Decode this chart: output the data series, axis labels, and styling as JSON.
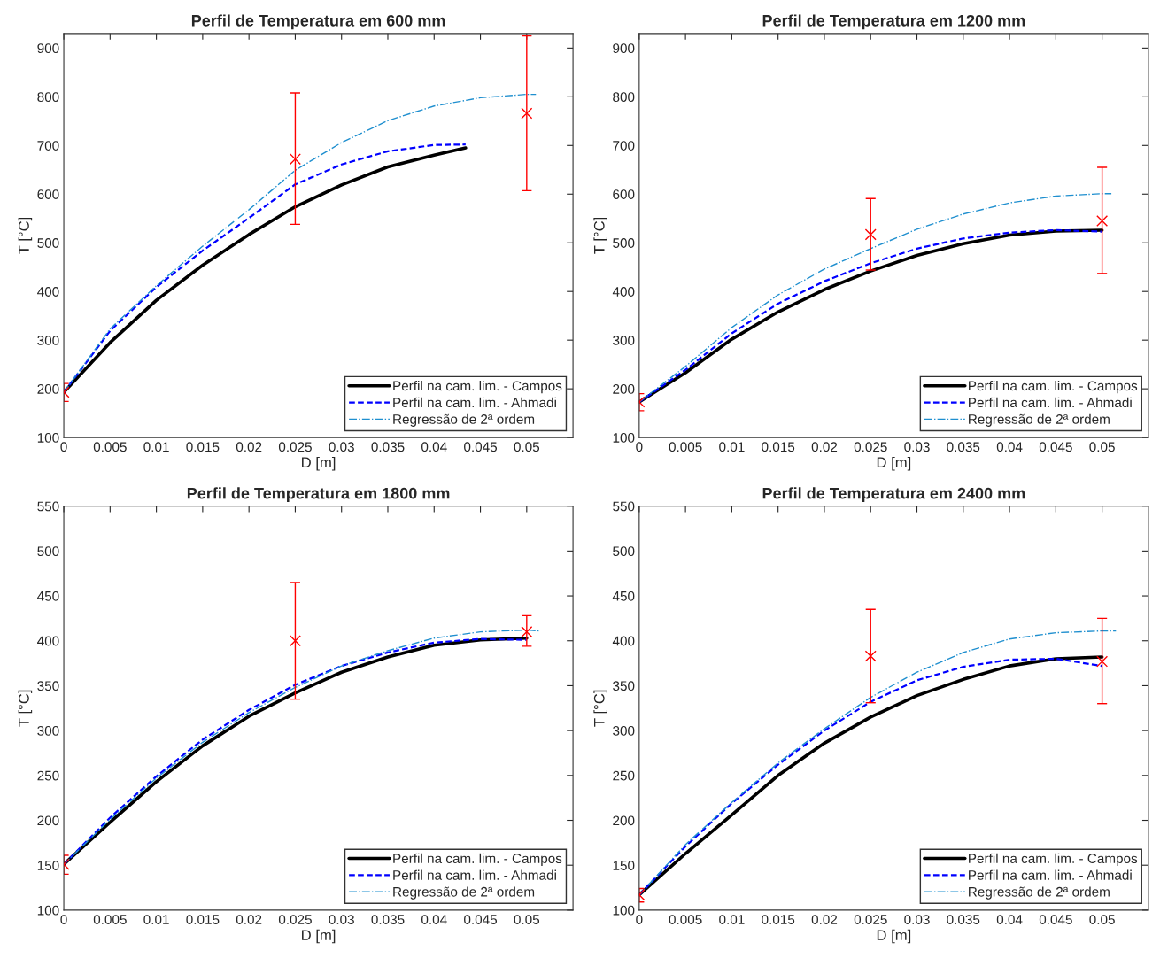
{
  "chart_data": [
    {
      "type": "line",
      "title": "Perfil de Temperatura em 600 mm",
      "xlabel": "D [m]",
      "ylabel": "T [°C]",
      "xlim": [
        0,
        0.055
      ],
      "ylim": [
        100,
        930
      ],
      "xticks": [
        0,
        0.005,
        0.01,
        0.015,
        0.02,
        0.025,
        0.03,
        0.035,
        0.04,
        0.045,
        0.05
      ],
      "yticks": [
        100,
        200,
        300,
        400,
        500,
        600,
        700,
        800,
        900
      ],
      "grid": false,
      "legend": "bottom right",
      "series": [
        {
          "name": "Perfil na cam. lim. - Campos",
          "color": "#000000",
          "line_style": "solid",
          "x": [
            0,
            0.005,
            0.01,
            0.015,
            0.02,
            0.025,
            0.03,
            0.035,
            0.04,
            0.0434
          ],
          "values": [
            193,
            295,
            382,
            454,
            517,
            574,
            619,
            656,
            680,
            695
          ]
        },
        {
          "name": "Perfil na cam. lim. - Ahmadi",
          "color": "#0000ff",
          "line_style": "dashed",
          "x": [
            0,
            0.005,
            0.01,
            0.015,
            0.02,
            0.025,
            0.03,
            0.035,
            0.04,
            0.0434
          ],
          "values": [
            193,
            319,
            409,
            484,
            551,
            620,
            661,
            688,
            701,
            702
          ]
        },
        {
          "name": "Regressão de 2ª ordem",
          "color": "#1f8fcf",
          "line_style": "dashdot",
          "x": [
            0,
            0.005,
            0.01,
            0.015,
            0.02,
            0.025,
            0.03,
            0.035,
            0.04,
            0.045,
            0.05,
            0.051
          ],
          "values": [
            193,
            323,
            412,
            493,
            568,
            649,
            706,
            751,
            781,
            798,
            805,
            805
          ]
        },
        {
          "type": "scatter",
          "marker": "cross",
          "color": "#ff0000",
          "x": [
            0,
            0.025,
            0.05
          ],
          "values": [
            193,
            672,
            766
          ],
          "errors": [
            [
              174,
              211
            ],
            [
              538,
              808
            ],
            [
              607,
              925
            ]
          ]
        }
      ]
    },
    {
      "type": "line",
      "title": "Perfil de Temperatura em 1200 mm",
      "xlabel": "D [m]",
      "ylabel": "T [°C]",
      "xlim": [
        0,
        0.055
      ],
      "ylim": [
        100,
        930
      ],
      "xticks": [
        0,
        0.005,
        0.01,
        0.015,
        0.02,
        0.025,
        0.03,
        0.035,
        0.04,
        0.045,
        0.05
      ],
      "yticks": [
        100,
        200,
        300,
        400,
        500,
        600,
        700,
        800,
        900
      ],
      "grid": false,
      "legend": "bottom right",
      "series": [
        {
          "name": "Perfil na cam. lim. - Campos",
          "color": "#000000",
          "line_style": "solid",
          "x": [
            0,
            0.005,
            0.01,
            0.015,
            0.02,
            0.025,
            0.03,
            0.035,
            0.04,
            0.045,
            0.05
          ],
          "values": [
            173,
            233,
            302,
            358,
            404,
            442,
            474,
            498,
            516,
            524,
            526
          ]
        },
        {
          "name": "Perfil na cam. lim. - Ahmadi",
          "color": "#0000ff",
          "line_style": "dashed",
          "x": [
            0,
            0.005,
            0.01,
            0.015,
            0.02,
            0.025,
            0.03,
            0.035,
            0.04,
            0.045,
            0.05
          ],
          "values": [
            173,
            239,
            314,
            375,
            421,
            458,
            488,
            509,
            521,
            526,
            523
          ]
        },
        {
          "name": "Regressão de 2ª ordem",
          "color": "#1f8fcf",
          "line_style": "dashdot",
          "x": [
            0,
            0.005,
            0.01,
            0.015,
            0.02,
            0.025,
            0.03,
            0.035,
            0.04,
            0.045,
            0.05,
            0.051
          ],
          "values": [
            173,
            246,
            326,
            393,
            446,
            488,
            528,
            559,
            582,
            596,
            601,
            601
          ]
        },
        {
          "type": "scatter",
          "marker": "cross",
          "color": "#ff0000",
          "x": [
            0,
            0.025,
            0.05
          ],
          "values": [
            173,
            517,
            545
          ],
          "errors": [
            [
              155,
              190
            ],
            [
              444,
              591
            ],
            [
              437,
              655
            ]
          ]
        }
      ]
    },
    {
      "type": "line",
      "title": "Perfil de Temperatura em 1800 mm",
      "xlabel": "D [m]",
      "ylabel": "T [°C]",
      "xlim": [
        0,
        0.055
      ],
      "ylim": [
        100,
        550
      ],
      "xticks": [
        0,
        0.005,
        0.01,
        0.015,
        0.02,
        0.025,
        0.03,
        0.035,
        0.04,
        0.045,
        0.05
      ],
      "yticks": [
        100,
        150,
        200,
        250,
        300,
        350,
        400,
        450,
        500,
        550
      ],
      "grid": false,
      "legend": "bottom right",
      "series": [
        {
          "name": "Perfil na cam. lim. - Campos",
          "color": "#000000",
          "line_style": "solid",
          "x": [
            0,
            0.005,
            0.01,
            0.015,
            0.02,
            0.025,
            0.03,
            0.035,
            0.04,
            0.045,
            0.05
          ],
          "values": [
            151,
            198,
            243,
            283,
            316,
            342,
            365,
            382,
            395,
            401,
            403
          ]
        },
        {
          "name": "Perfil na cam. lim. - Ahmadi",
          "color": "#0000ff",
          "line_style": "dashed",
          "x": [
            0,
            0.005,
            0.01,
            0.015,
            0.02,
            0.025,
            0.03,
            0.035,
            0.04,
            0.045,
            0.05
          ],
          "values": [
            151,
            203,
            249,
            290,
            323,
            351,
            372,
            387,
            398,
            402,
            401
          ]
        },
        {
          "name": "Regressão de 2ª ordem",
          "color": "#1f8fcf",
          "line_style": "dashdot",
          "x": [
            0,
            0.005,
            0.01,
            0.015,
            0.02,
            0.025,
            0.03,
            0.035,
            0.04,
            0.045,
            0.05,
            0.0515
          ],
          "values": [
            151,
            201,
            247,
            287,
            320,
            348,
            372,
            389,
            403,
            410,
            412,
            411
          ]
        },
        {
          "type": "scatter",
          "marker": "cross",
          "color": "#ff0000",
          "x": [
            0,
            0.025,
            0.05
          ],
          "values": [
            151,
            400,
            410
          ],
          "errors": [
            [
              140,
              161
            ],
            [
              335,
              465
            ],
            [
              394,
              428
            ]
          ]
        }
      ]
    },
    {
      "type": "line",
      "title": "Perfil de Temperatura em 2400 mm",
      "xlabel": "D [m]",
      "ylabel": "T [°C]",
      "xlim": [
        0,
        0.055
      ],
      "ylim": [
        100,
        550
      ],
      "xticks": [
        0,
        0.005,
        0.01,
        0.015,
        0.02,
        0.025,
        0.03,
        0.035,
        0.04,
        0.045,
        0.05
      ],
      "yticks": [
        100,
        150,
        200,
        250,
        300,
        350,
        400,
        450,
        500,
        550
      ],
      "grid": false,
      "legend": "bottom right",
      "series": [
        {
          "name": "Perfil na cam. lim. - Campos",
          "color": "#000000",
          "line_style": "solid",
          "x": [
            0,
            0.005,
            0.01,
            0.015,
            0.02,
            0.025,
            0.03,
            0.035,
            0.04,
            0.045,
            0.05
          ],
          "values": [
            117,
            163,
            206,
            250,
            286,
            315,
            339,
            357,
            372,
            380,
            382
          ]
        },
        {
          "name": "Perfil na cam. lim. - Ahmadi",
          "color": "#0000ff",
          "line_style": "dashed",
          "x": [
            0,
            0.005,
            0.01,
            0.015,
            0.02,
            0.025,
            0.03,
            0.035,
            0.04,
            0.045,
            0.05
          ],
          "values": [
            117,
            171,
            219,
            262,
            300,
            332,
            356,
            371,
            379,
            380,
            372
          ]
        },
        {
          "name": "Regressão de 2ª ordem",
          "color": "#1f8fcf",
          "line_style": "dashdot",
          "x": [
            0,
            0.005,
            0.01,
            0.015,
            0.02,
            0.025,
            0.03,
            0.035,
            0.04,
            0.045,
            0.05,
            0.0515
          ],
          "values": [
            117,
            173,
            220,
            264,
            302,
            337,
            365,
            387,
            402,
            409,
            411,
            411
          ]
        },
        {
          "type": "scatter",
          "marker": "cross",
          "color": "#ff0000",
          "x": [
            0,
            0.025,
            0.05
          ],
          "values": [
            117,
            383,
            377
          ],
          "errors": [
            [
              109,
              124
            ],
            [
              331,
              435
            ],
            [
              330,
              425
            ]
          ]
        }
      ]
    }
  ]
}
